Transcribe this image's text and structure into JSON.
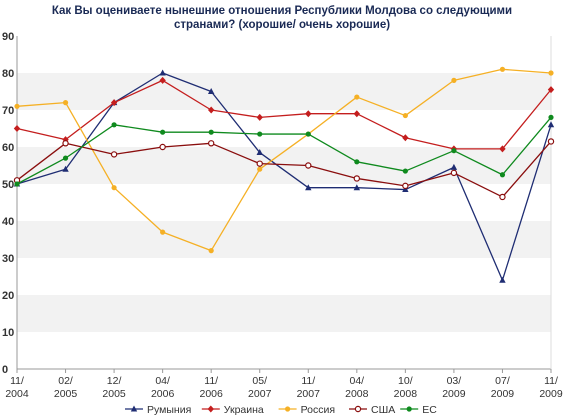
{
  "chart_data": {
    "type": "line",
    "title_lines": [
      "Как Вы оцениваете нынешние отношения Республики Молдова со следующими",
      "странами? (хорошие/ очень хорошие)"
    ],
    "xlabel": "",
    "ylabel": "",
    "ylim": [
      0,
      90
    ],
    "yticks": [
      0,
      10,
      20,
      30,
      40,
      50,
      60,
      70,
      80,
      90
    ],
    "grid": "horizontal-bands",
    "legend_position": "bottom",
    "x": [
      [
        "11/",
        "2004"
      ],
      [
        "02/",
        "2005"
      ],
      [
        "12/",
        "2005"
      ],
      [
        "04/",
        "2006"
      ],
      [
        "11/",
        "2006"
      ],
      [
        "05/",
        "2007"
      ],
      [
        "11/",
        "2007"
      ],
      [
        "04/",
        "2008"
      ],
      [
        "10/",
        "2008"
      ],
      [
        "03/",
        "2009"
      ],
      [
        "07/",
        "2009"
      ],
      [
        "11/",
        "2009"
      ]
    ],
    "series": [
      {
        "name": "Румыния",
        "color": "#1f2d73",
        "marker": "triangle",
        "values": [
          50,
          54,
          72,
          80,
          75,
          58.5,
          49,
          49,
          48.5,
          54.5,
          24,
          66
        ]
      },
      {
        "name": "Украина",
        "color": "#c41e1e",
        "marker": "diamond",
        "values": [
          65,
          62,
          72,
          78,
          70,
          68,
          69,
          69,
          62.5,
          59.5,
          59.5,
          75.5
        ]
      },
      {
        "name": "Россия",
        "color": "#f5b025",
        "marker": "circle",
        "values": [
          71,
          72,
          49,
          37,
          32,
          54,
          63.5,
          73.5,
          68.5,
          78,
          81,
          80
        ]
      },
      {
        "name": "США",
        "color": "#8a0e0e",
        "marker": "ring",
        "values": [
          51,
          61,
          58,
          60,
          61,
          55.5,
          55,
          51.5,
          49.5,
          53,
          46.5,
          61.5
        ]
      },
      {
        "name": "ЕС",
        "color": "#0f8a1e",
        "marker": "circle",
        "values": [
          50,
          57,
          66,
          64,
          64,
          63.5,
          63.5,
          56,
          53.5,
          59,
          52.5,
          68
        ]
      }
    ]
  }
}
